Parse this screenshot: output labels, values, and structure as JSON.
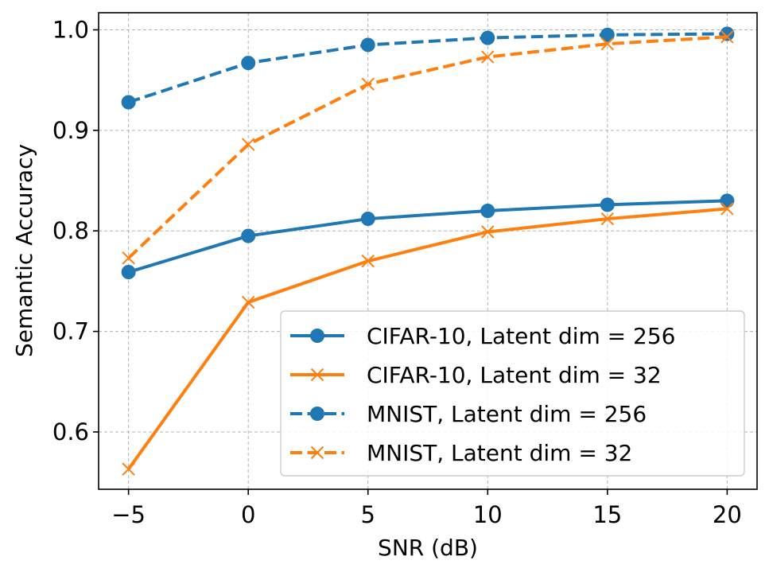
{
  "chart_data": {
    "type": "line",
    "title": "",
    "xlabel": "SNR (dB)",
    "ylabel": "Semantic Accuracy",
    "x": [
      -5,
      0,
      5,
      10,
      15,
      20
    ],
    "x_tick_labels": [
      "−5",
      "0",
      "5",
      "10",
      "15",
      "20"
    ],
    "y_tick_values": [
      0.6,
      0.7,
      0.8,
      0.9,
      1.0
    ],
    "y_tick_labels": [
      "0.6",
      "0.7",
      "0.8",
      "0.9",
      "1.0"
    ],
    "xlim": [
      -6.25,
      21.25
    ],
    "ylim": [
      0.543,
      1.017
    ],
    "grid": true,
    "legend_position": "lower-right",
    "series": [
      {
        "name": "CIFAR-10, Latent dim = 256",
        "values": [
          0.759,
          0.795,
          0.812,
          0.82,
          0.826,
          0.83
        ],
        "color": "#1f77b4",
        "line_style": "solid",
        "marker": "circle"
      },
      {
        "name": "CIFAR-10, Latent dim = 32",
        "values": [
          0.563,
          0.729,
          0.77,
          0.799,
          0.812,
          0.822
        ],
        "color": "#ff7f0e",
        "line_style": "solid",
        "marker": "x"
      },
      {
        "name": "MNIST, Latent dim = 256",
        "values": [
          0.928,
          0.967,
          0.985,
          0.992,
          0.995,
          0.996
        ],
        "color": "#1f77b4",
        "line_style": "dashed",
        "marker": "circle"
      },
      {
        "name": "MNIST, Latent dim = 32",
        "values": [
          0.773,
          0.886,
          0.946,
          0.973,
          0.986,
          0.993
        ],
        "color": "#ff7f0e",
        "line_style": "dashed",
        "marker": "x"
      }
    ]
  }
}
